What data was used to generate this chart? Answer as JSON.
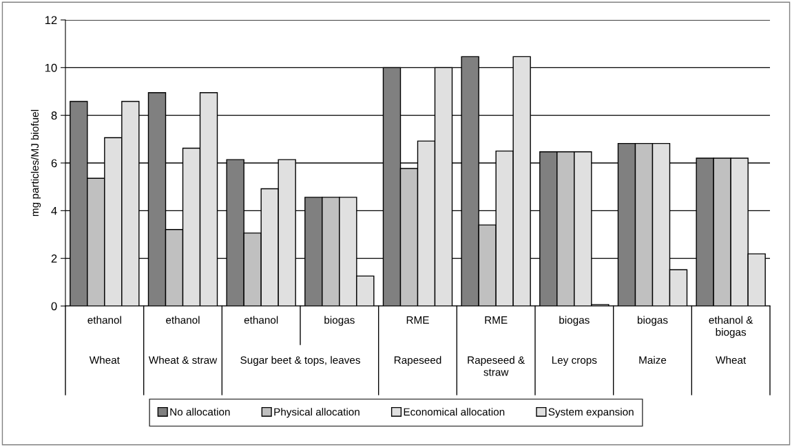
{
  "chart_data": {
    "type": "bar",
    "ylabel": "mg particles/MJ biofuel",
    "categories": [
      "ethanol",
      "ethanol",
      "ethanol",
      "biogas",
      "RME",
      "RME",
      "biogas",
      "biogas",
      "ethanol & biogas"
    ],
    "annotations": [
      "Wheat",
      "Wheat & straw",
      "Sugar beet & tops, leaves",
      "Rapeseed",
      "Rapeseed & straw",
      "Ley crops",
      "Maize",
      "Wheat"
    ],
    "series": [
      {
        "name": "No allocation",
        "color": "#808080",
        "values": [
          8.58,
          8.95,
          6.14,
          4.56,
          10.0,
          10.46,
          6.47,
          6.82,
          6.2
        ]
      },
      {
        "name": "Physical allocation",
        "color": "#c0c0c0",
        "values": [
          5.36,
          3.21,
          3.06,
          4.56,
          5.77,
          3.4,
          6.47,
          6.82,
          6.2
        ]
      },
      {
        "name": "Economical allocation",
        "color": "#e0e0e0",
        "values": [
          7.06,
          6.62,
          4.92,
          4.56,
          6.92,
          6.5,
          6.47,
          6.82,
          6.2
        ]
      },
      {
        "name": "System expansion",
        "color": "#e0e0e0",
        "values": [
          8.58,
          8.95,
          6.14,
          1.26,
          10.0,
          10.46,
          0.06,
          1.52,
          2.19
        ]
      }
    ],
    "ylim": [
      0,
      12
    ],
    "yticks": [
      0,
      2,
      4,
      6,
      8,
      10,
      12
    ],
    "grid": "y",
    "legend": "bottom"
  }
}
